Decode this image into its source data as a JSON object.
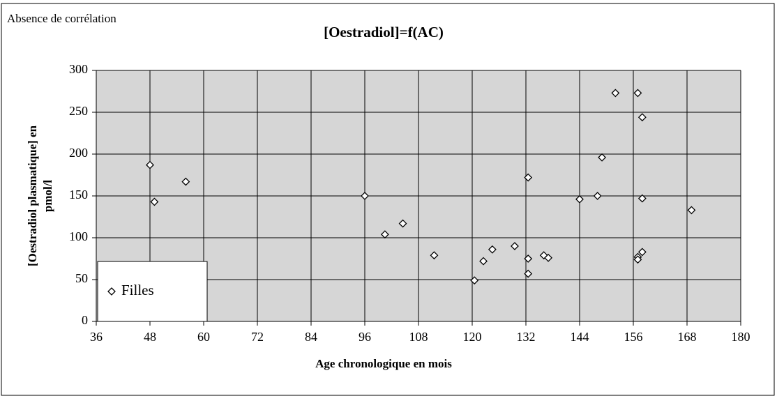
{
  "chart_data": {
    "type": "scatter",
    "annotation": "Absence de corrélation",
    "title": "[Oestradiol]=f(AC)",
    "xlabel": "Age chronologique en mois",
    "ylabel": [
      "[Oestradiol plasmatique] en",
      "pmol/l"
    ],
    "xlim": [
      36,
      180
    ],
    "xticks": [
      36,
      48,
      60,
      72,
      84,
      96,
      108,
      120,
      132,
      144,
      156,
      168,
      180
    ],
    "ylim": [
      0,
      300
    ],
    "yticks": [
      0,
      50,
      100,
      150,
      200,
      250,
      300
    ],
    "grid": true,
    "legend": "lower left",
    "series": [
      {
        "name": "Filles",
        "color": "#000000",
        "x": [
          48,
          49,
          56,
          96,
          100.5,
          104.5,
          111.5,
          120.5,
          122.5,
          124.5,
          129.5,
          132.5,
          132.5,
          132.5,
          136,
          137,
          144,
          148,
          149,
          152,
          157,
          158,
          158,
          158,
          157,
          157,
          169
        ],
        "values": [
          187,
          143,
          167,
          150,
          104,
          117,
          79,
          49,
          72,
          86,
          90,
          172,
          75,
          57,
          79,
          76,
          146,
          150,
          196,
          273,
          273,
          244,
          147,
          83,
          77,
          74,
          133
        ]
      }
    ]
  }
}
